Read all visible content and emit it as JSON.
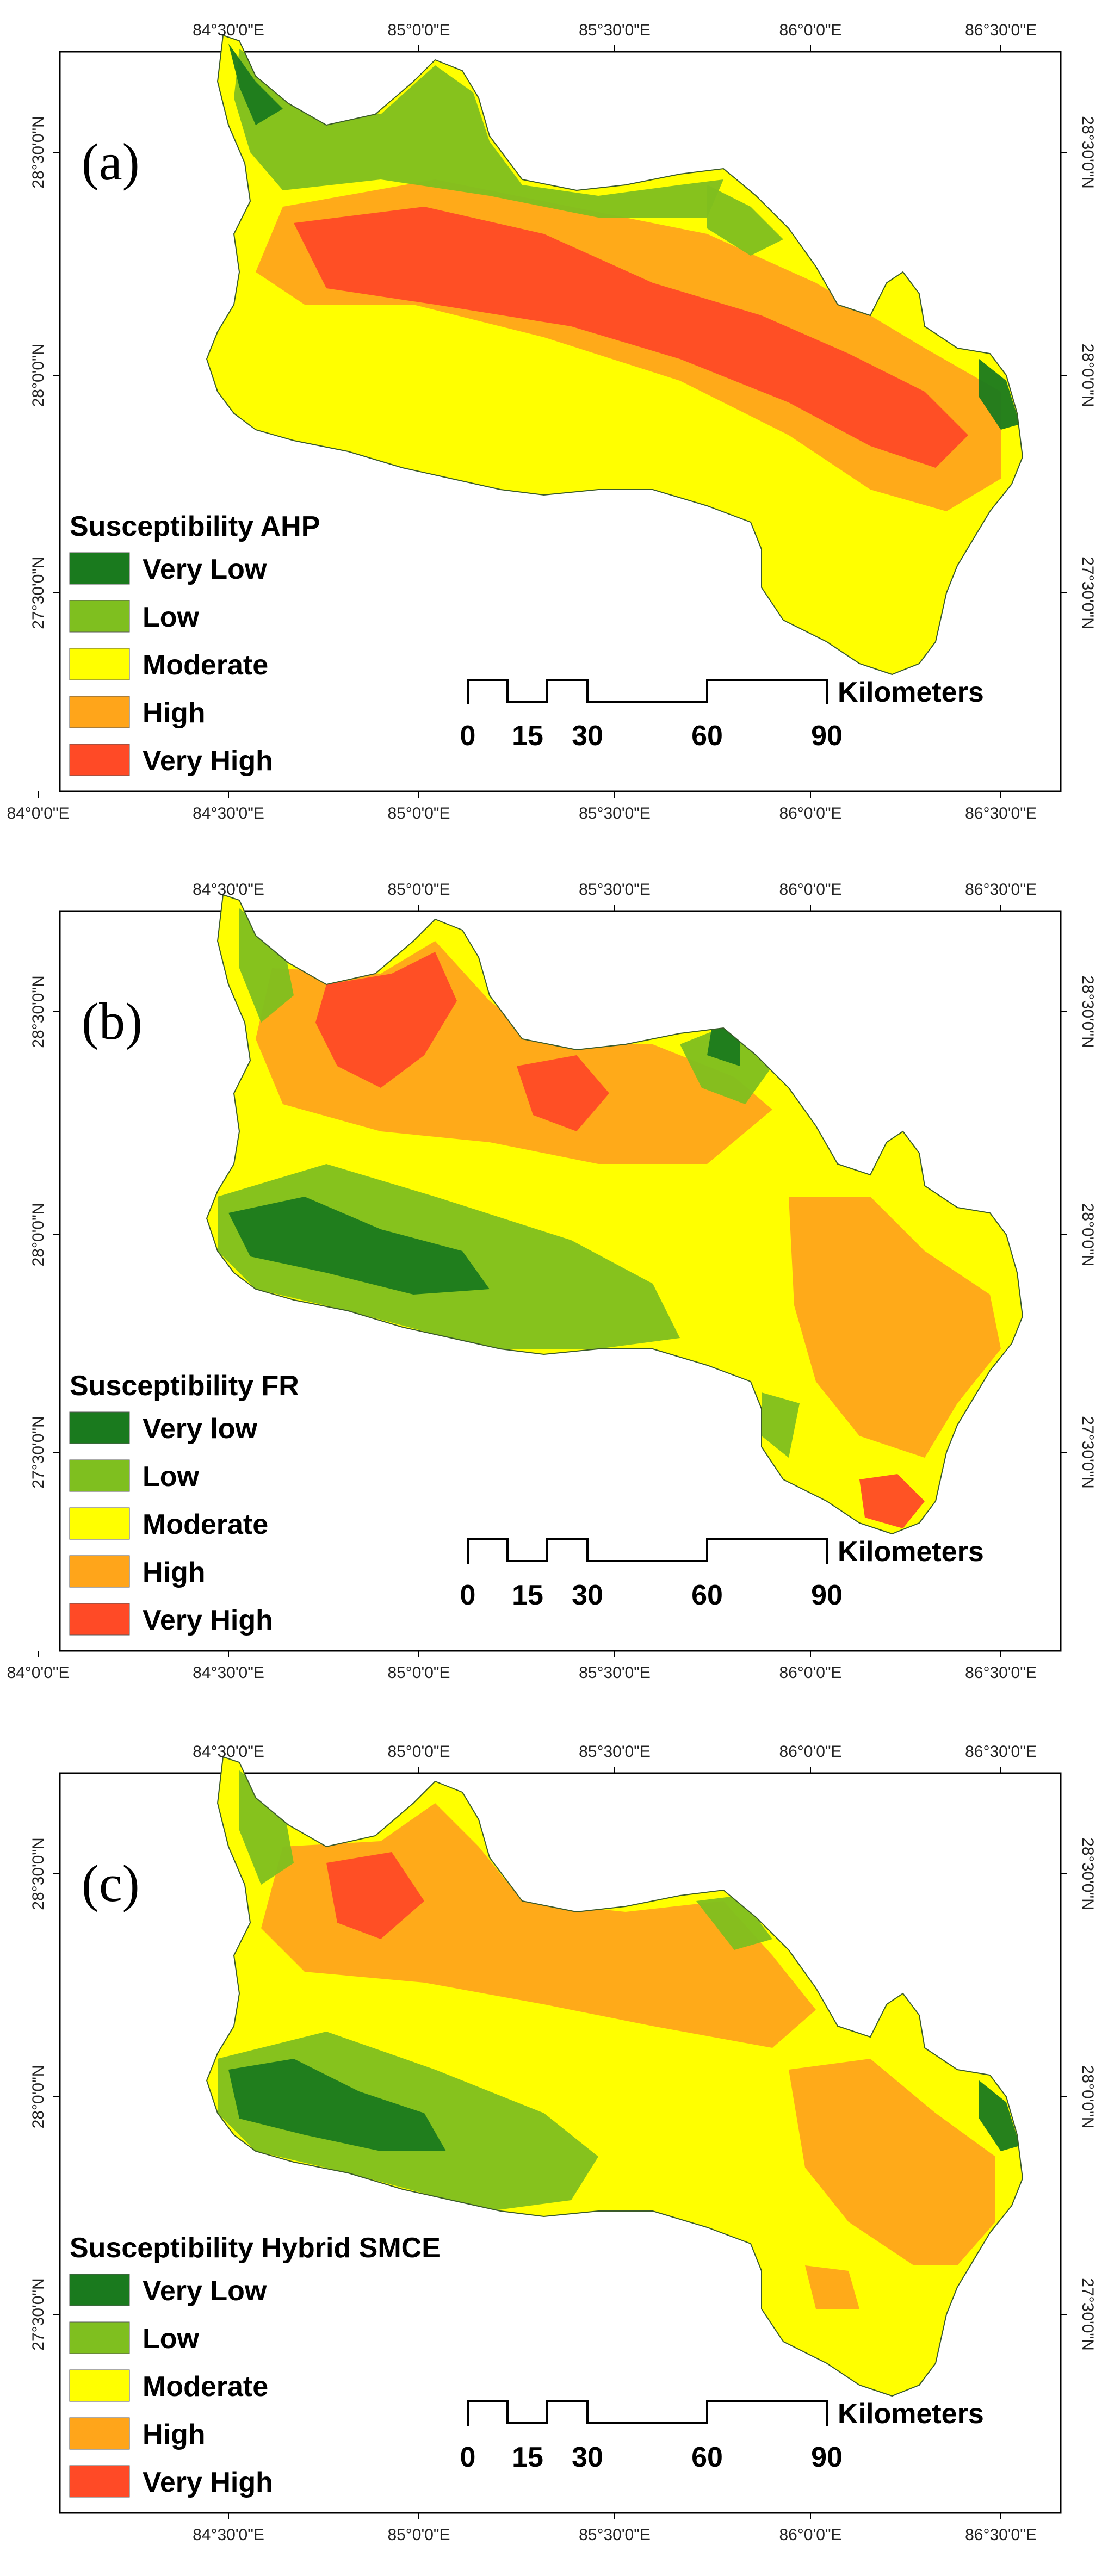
{
  "palette": {
    "very_low": "#1a7a1e",
    "low": "#7fbf1f",
    "moderate": "#ffff00",
    "high": "#ffa51a",
    "very_high": "#ff4a26"
  },
  "scale_bar": {
    "ticks": [
      "0",
      "15",
      "30",
      "60",
      "90"
    ],
    "unit": "Kilometers"
  },
  "panels": [
    {
      "label": "(a)",
      "legend_title": "Susceptibility AHP",
      "legend_items": [
        "Very Low",
        "Low",
        "Moderate",
        "High",
        "Very High"
      ],
      "top_lon": [
        "84°30'0\"E",
        "85°0'0\"E",
        "85°30'0\"E",
        "86°0'0\"E",
        "86°30'0\"E"
      ],
      "bottom_lon": [
        "84°0'0\"E",
        "84°30'0\"E",
        "85°0'0\"E",
        "85°30'0\"E",
        "86°0'0\"E",
        "86°30'0\"E"
      ],
      "left_lat": [
        "28°30'0\"N",
        "28°0'0\"N",
        "27°30'0\"N"
      ],
      "right_lat": [
        "28°30'0\"N",
        "28°0'0\"N",
        "27°30'0\"N"
      ]
    },
    {
      "label": "(b)",
      "legend_title": "Susceptibility FR",
      "legend_items": [
        "Very low",
        "Low",
        "Moderate",
        "High",
        "Very High"
      ],
      "top_lon": [
        "84°30'0\"E",
        "85°0'0\"E",
        "85°30'0\"E",
        "86°0'0\"E",
        "86°30'0\"E"
      ],
      "bottom_lon": [
        "84°0'0\"E",
        "84°30'0\"E",
        "85°0'0\"E",
        "85°30'0\"E",
        "86°0'0\"E",
        "86°30'0\"E"
      ],
      "left_lat": [
        "28°30'0\"N",
        "28°0'0\"N",
        "27°30'0\"N"
      ],
      "right_lat": [
        "28°30'0\"N",
        "28°0'0\"N",
        "27°30'0\"N"
      ]
    },
    {
      "label": "(c)",
      "legend_title": "Susceptibility Hybrid SMCE",
      "legend_items": [
        "Very Low",
        "Low",
        "Moderate",
        "High",
        "Very High"
      ],
      "top_lon": [
        "84°30'0\"E",
        "85°0'0\"E",
        "85°30'0\"E",
        "86°0'0\"E",
        "86°30'0\"E"
      ],
      "bottom_lon": [
        "84°30'0\"E",
        "85°0'0\"E",
        "85°30'0\"E",
        "86°0'0\"E",
        "86°30'0\"E"
      ],
      "left_lat": [
        "28°30'0\"N",
        "28°0'0\"N",
        "27°30'0\"N"
      ],
      "right_lat": [
        "28°30'0\"N",
        "28°0'0\"N",
        "27°30'0\"N"
      ]
    }
  ]
}
